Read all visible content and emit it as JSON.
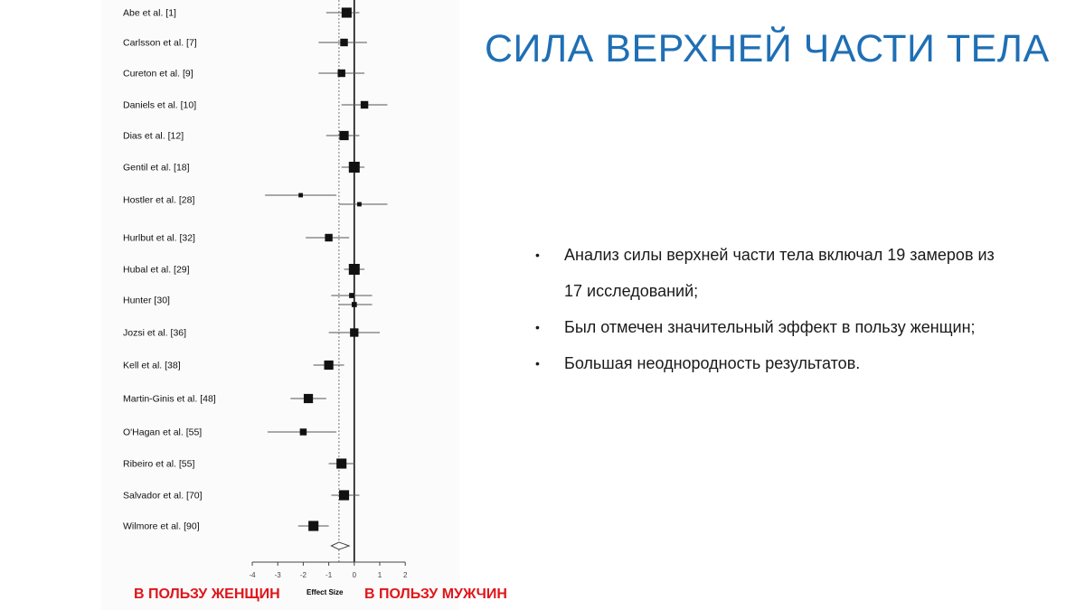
{
  "slide": {
    "title": "СИЛА ВЕРХНЕЙ ЧАСТИ ТЕЛА",
    "bullets": [
      "Анализ силы верхней части тела включал 19 замеров из 17 исследований;",
      "Был отмечен значительный эффект в пользу женщин;",
      "Большая неоднородность результатов."
    ],
    "bullet_symbol": "•",
    "favors_women": "В ПОЛЬЗУ ЖЕНЩИН",
    "favors_men": "В ПОЛЬЗУ МУЖЧИН",
    "colors": {
      "title": "#1f6fb4",
      "favors_labels": "#e0151a"
    }
  },
  "chart_data": {
    "type": "forest",
    "xlabel": "Effect Size",
    "xlim": [
      -4,
      2
    ],
    "xticks": [
      -4,
      -3,
      -2,
      -1,
      0,
      1,
      2
    ],
    "reference_lines": [
      0,
      -0.6
    ],
    "studies": [
      {
        "label": "Abe et al. [1]",
        "points": [
          {
            "effect": -0.3,
            "ci": [
              -1.1,
              0.2
            ],
            "weight": 0.9
          }
        ]
      },
      {
        "label": "Carlsson et al. [7]",
        "points": [
          {
            "effect": -0.4,
            "ci": [
              -1.4,
              0.5
            ],
            "weight": 0.6
          }
        ]
      },
      {
        "label": "Cureton et al. [9]",
        "points": [
          {
            "effect": -0.5,
            "ci": [
              -1.4,
              0.4
            ],
            "weight": 0.6
          }
        ]
      },
      {
        "label": "Daniels et al. [10]",
        "points": [
          {
            "effect": 0.4,
            "ci": [
              -0.5,
              1.3
            ],
            "weight": 0.6
          }
        ]
      },
      {
        "label": "Dias et al. [12]",
        "points": [
          {
            "effect": -0.4,
            "ci": [
              -1.1,
              0.2
            ],
            "weight": 0.8
          }
        ]
      },
      {
        "label": "Gentil et al. [18]",
        "points": [
          {
            "effect": 0.0,
            "ci": [
              -0.5,
              0.4
            ],
            "weight": 1.0
          }
        ]
      },
      {
        "label": "Hostler et al. [28]",
        "points": [
          {
            "effect": -2.1,
            "ci": [
              -3.5,
              -0.7
            ],
            "weight": 0.2
          },
          {
            "effect": 0.2,
            "ci": [
              -0.6,
              1.3
            ],
            "weight": 0.2
          }
        ]
      },
      {
        "label": "Hurlbut et al. [32]",
        "points": [
          {
            "effect": -1.0,
            "ci": [
              -1.9,
              -0.2
            ],
            "weight": 0.6
          }
        ]
      },
      {
        "label": "Hubal et al. [29]",
        "points": [
          {
            "effect": 0.0,
            "ci": [
              -0.4,
              0.4
            ],
            "weight": 1.0
          }
        ]
      },
      {
        "label": "Hunter [30]",
        "points": [
          {
            "effect": -0.1,
            "ci": [
              -0.9,
              0.7
            ],
            "weight": 0.3
          },
          {
            "effect": 0.0,
            "ci": [
              -0.6,
              0.7
            ],
            "weight": 0.3
          }
        ]
      },
      {
        "label": "Jozsi et al. [36]",
        "points": [
          {
            "effect": 0.0,
            "ci": [
              -1.0,
              1.0
            ],
            "weight": 0.7
          }
        ]
      },
      {
        "label": "Kell et al. [38]",
        "points": [
          {
            "effect": -1.0,
            "ci": [
              -1.6,
              -0.4
            ],
            "weight": 0.8
          }
        ]
      },
      {
        "label": "Martin-Ginis et al. [48]",
        "points": [
          {
            "effect": -1.8,
            "ci": [
              -2.5,
              -1.1
            ],
            "weight": 0.8
          }
        ]
      },
      {
        "label": "O'Hagan et al. [55]",
        "points": [
          {
            "effect": -2.0,
            "ci": [
              -3.4,
              -0.7
            ],
            "weight": 0.5
          }
        ]
      },
      {
        "label": "Ribeiro et al. [55]",
        "points": [
          {
            "effect": -0.5,
            "ci": [
              -1.0,
              0.0
            ],
            "weight": 0.9
          }
        ]
      },
      {
        "label": "Salvador et al. [70]",
        "points": [
          {
            "effect": -0.4,
            "ci": [
              -0.9,
              0.2
            ],
            "weight": 0.9
          }
        ]
      },
      {
        "label": "Wilmore et al. [90]",
        "points": [
          {
            "effect": -1.6,
            "ci": [
              -2.2,
              -1.0
            ],
            "weight": 0.9
          }
        ]
      }
    ],
    "pooled": {
      "effect": -0.6,
      "ci": [
        -0.9,
        -0.2
      ]
    }
  }
}
